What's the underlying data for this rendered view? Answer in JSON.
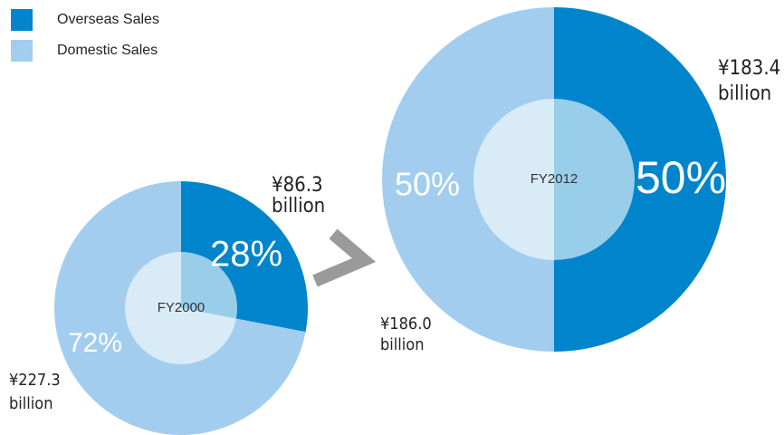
{
  "legend": {
    "names": [
      "Overseas Sales",
      "Domestic Sales"
    ],
    "colors": [
      "#0085cc",
      "#a2cdee"
    ]
  },
  "chart_data": [
    {
      "type": "pie",
      "label": "FY2000",
      "values": [
        28,
        72
      ],
      "value_labels": [
        "28%",
        "72%"
      ],
      "annotations": [
        [
          "¥86.3",
          "billion"
        ],
        [
          "¥227.3",
          "billion"
        ]
      ]
    },
    {
      "type": "pie",
      "label": "FY2012",
      "values": [
        50,
        50
      ],
      "value_labels": [
        "50%",
        "50%"
      ],
      "annotations": [
        [
          "¥183.4",
          "billion"
        ],
        [
          "¥186.0",
          "billion"
        ]
      ]
    }
  ]
}
